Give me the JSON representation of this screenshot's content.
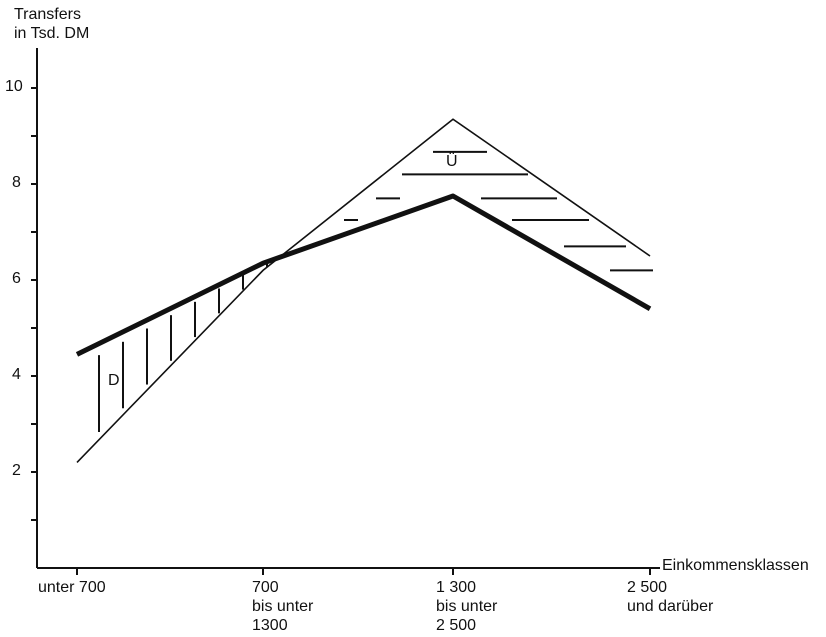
{
  "chart_data": {
    "type": "line",
    "ylabel_line1": "Transfers",
    "ylabel_line2": "in Tsd. DM",
    "xlabel": "Einkommensklassen",
    "categories": [
      [
        "unter 700"
      ],
      [
        "700",
        "bis unter",
        "1300"
      ],
      [
        "1 300",
        "bis unter",
        "2 500"
      ],
      [
        "2 500",
        "und darüber"
      ]
    ],
    "yticks": [
      "2",
      "4",
      "6",
      "8",
      "10"
    ],
    "ylim": [
      0,
      10.5
    ],
    "series": [
      {
        "values": [
          4.45,
          6.35,
          7.75,
          5.4
        ],
        "style": "thick"
      },
      {
        "values": [
          2.2,
          6.2,
          9.35,
          6.5
        ],
        "style": "thin"
      }
    ],
    "annotations": [
      {
        "text": "D",
        "near_category": 0,
        "y": 4.0,
        "meaning": "region where thick line is above thin line, vertical hatching"
      },
      {
        "text": "Ü",
        "near_category": 2,
        "y": 8.5,
        "meaning": "region where thin line is above thick line, horizontal hatching"
      }
    ],
    "grid": false,
    "legend": "none"
  }
}
